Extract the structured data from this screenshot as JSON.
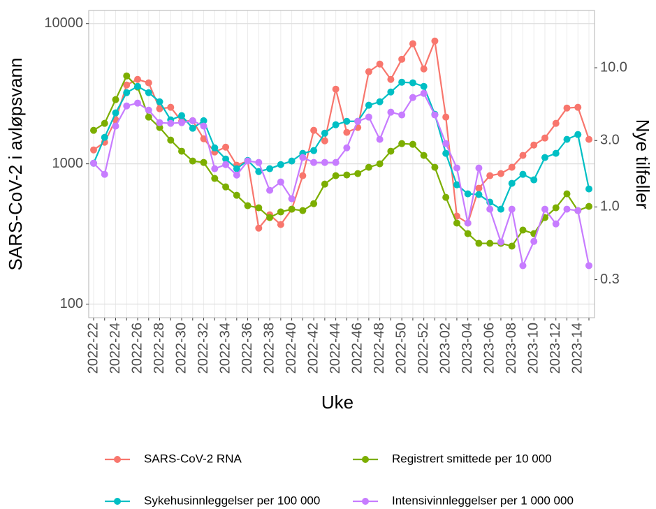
{
  "chart_data": {
    "type": "line",
    "y_label": "SARS-CoV-2 i avløpsvann",
    "y2_label": "Nye tilfeller",
    "x_label": "Uke",
    "log_y": true,
    "log_y2": true,
    "grid": true,
    "legend": "bottom",
    "categories": [
      "2022-22",
      null,
      "2022-24",
      null,
      "2022-26",
      null,
      "2022-28",
      null,
      "2022-30",
      null,
      "2022-32",
      null,
      "2022-34",
      null,
      "2022-36",
      null,
      "2022-38",
      null,
      "2022-40",
      null,
      "2022-42",
      null,
      "2022-44",
      null,
      "2022-46",
      null,
      "2022-48",
      null,
      "2022-50",
      null,
      "2022-52",
      null,
      "2023-02",
      null,
      "2023-04",
      null,
      "2023-06",
      null,
      "2023-08",
      null,
      "2023-10",
      null,
      "2023-12",
      null,
      "2023-14",
      null
    ],
    "ylim": [
      80,
      12400
    ],
    "yticks": [
      100,
      1000,
      10000
    ],
    "y2lim": [
      0.16,
      25.8
    ],
    "y2ticks": [
      {
        "value": 10,
        "label": "10.0"
      },
      {
        "value": 3,
        "label": "3.0"
      },
      {
        "value": 1,
        "label": "1.0"
      },
      0.3
    ],
    "series": [
      {
        "name": "SARS-CoV-2 RNA",
        "color": "#F8766D",
        "values": [
          1257,
          1426,
          2058,
          3650,
          4000,
          3780,
          2470,
          2530,
          2010,
          2030,
          1510,
          1215,
          1315,
          977,
          1047,
          348,
          433,
          369,
          475,
          823,
          1733,
          1459,
          3407,
          1675,
          1815,
          4540,
          5145,
          4000,
          5570,
          7180,
          4750,
          7510,
          2155,
          424,
          378,
          670,
          823,
          852,
          945,
          1148,
          1362,
          1528,
          1944,
          2500,
          2530,
          1494
        ]
      },
      {
        "name": "Registrert smittede per 10 000",
        "color": "#7CAE00",
        "values": [
          1733,
          1944,
          2870,
          4236,
          3527,
          2155,
          1815,
          1476,
          1230,
          1047,
          1023,
          787,
          685,
          597,
          503,
          486,
          414,
          454,
          475,
          464,
          520,
          717,
          823,
          833,
          852,
          945,
          1000,
          1230,
          1394,
          1378,
          1148,
          945,
          577,
          378,
          318,
          271,
          271,
          271,
          259,
          337,
          318,
          414,
          486,
          611,
          464,
          497
        ]
      },
      {
        "name": "Sykehusinnleggelser per 100 000",
        "color": "#00BFC4",
        "values": [
          1010,
          1545,
          2308,
          3217,
          3567,
          3217,
          2770,
          2058,
          2205,
          1794,
          2030,
          1300,
          1083,
          923,
          1058,
          881,
          923,
          988,
          1047,
          1188,
          1243,
          1655,
          1900,
          2010,
          2010,
          2618,
          2770,
          3253,
          3821,
          3780,
          3567,
          2256,
          1188,
          709,
          611,
          604,
          533,
          475,
          726,
          842,
          769,
          1109,
          1188,
          1494,
          1618,
          662
        ]
      },
      {
        "name": "Intensivinnleggelser per 1 000 000",
        "color": "#C77CFF",
        "values": [
          1010,
          842,
          1857,
          2588,
          2710,
          2415,
          1966,
          1944,
          1966,
          2030,
          1857,
          923,
          988,
          832,
          1047,
          1023,
          647,
          742,
          564,
          1109,
          1023,
          1023,
          1023,
          1300,
          2010,
          2155,
          1494,
          2335,
          2231,
          2970,
          3180,
          2231,
          1394,
          934,
          378,
          934,
          475,
          277,
          475,
          188,
          280,
          475,
          373,
          475,
          464,
          188
        ]
      }
    ]
  }
}
